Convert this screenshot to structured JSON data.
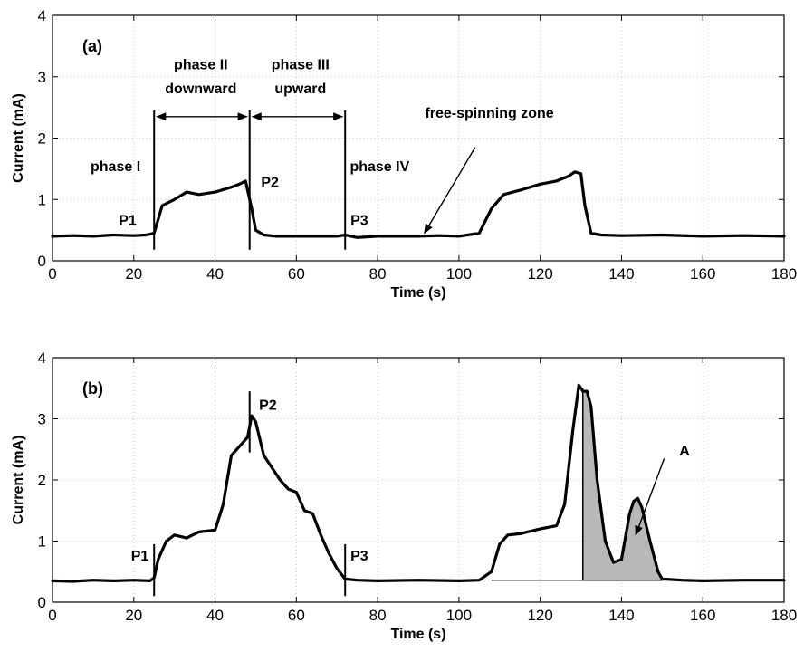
{
  "chart_data": [
    {
      "type": "line",
      "panel_label": "(a)",
      "xlabel": "Time (s)",
      "ylabel": "Current (mA)",
      "xlim": [
        0,
        180
      ],
      "ylim": [
        0,
        4
      ],
      "x_ticks": [
        0,
        20,
        40,
        60,
        80,
        100,
        120,
        140,
        160,
        180
      ],
      "y_ticks": [
        0,
        1,
        2,
        3,
        4
      ],
      "grid": true,
      "series": [
        {
          "x": [
            0,
            5,
            10,
            15,
            20,
            23,
            25,
            27,
            30,
            33,
            36,
            40,
            44,
            46,
            47.5,
            49,
            50,
            52,
            55,
            60,
            65,
            70,
            72,
            75,
            80,
            85,
            90,
            95,
            100,
            105,
            108,
            111,
            115,
            120,
            124,
            127,
            128.5,
            130,
            131,
            132.5,
            135,
            140,
            150,
            160,
            170,
            180
          ],
          "y": [
            0.4,
            0.41,
            0.4,
            0.42,
            0.41,
            0.42,
            0.45,
            0.9,
            1.0,
            1.12,
            1.08,
            1.12,
            1.2,
            1.25,
            1.3,
            0.85,
            0.5,
            0.42,
            0.4,
            0.4,
            0.4,
            0.4,
            0.42,
            0.38,
            0.4,
            0.4,
            0.4,
            0.41,
            0.4,
            0.45,
            0.85,
            1.08,
            1.15,
            1.25,
            1.3,
            1.38,
            1.45,
            1.42,
            0.9,
            0.45,
            0.42,
            0.41,
            0.42,
            0.4,
            0.41,
            0.4
          ]
        }
      ],
      "markers": [
        25,
        48.5,
        72
      ],
      "annotations": {
        "p1": "P1",
        "p2": "P2",
        "p3": "P3",
        "phase1": "phase I",
        "phase2_line1": "phase II",
        "phase2_line2": "downward",
        "phase3_line1": "phase III",
        "phase3_line2": "upward",
        "phase4": "phase IV",
        "free_spin": "free-spinning zone"
      }
    },
    {
      "type": "line",
      "panel_label": "(b)",
      "xlabel": "Time (s)",
      "ylabel": "Current (mA)",
      "xlim": [
        0,
        180
      ],
      "ylim": [
        0,
        4
      ],
      "x_ticks": [
        0,
        20,
        40,
        60,
        80,
        100,
        120,
        140,
        160,
        180
      ],
      "y_ticks": [
        0,
        1,
        2,
        3,
        4
      ],
      "grid": true,
      "series": [
        {
          "x": [
            0,
            5,
            10,
            15,
            20,
            24,
            25,
            26,
            28,
            30,
            33,
            36,
            40,
            42,
            44,
            46,
            48,
            49,
            50,
            52,
            54,
            56,
            58,
            60,
            62,
            64,
            66,
            68,
            70,
            72,
            75,
            80,
            90,
            100,
            105,
            108,
            110,
            112,
            115,
            120,
            124,
            126,
            128,
            129.5,
            130.5,
            131.5,
            132.5,
            134,
            136,
            138,
            140,
            142,
            143,
            144,
            145,
            147,
            149,
            150,
            155,
            160,
            170,
            180
          ],
          "y": [
            0.35,
            0.34,
            0.36,
            0.35,
            0.36,
            0.35,
            0.4,
            0.7,
            1.0,
            1.1,
            1.05,
            1.15,
            1.18,
            1.6,
            2.4,
            2.55,
            2.7,
            3.05,
            2.95,
            2.4,
            2.2,
            2.0,
            1.85,
            1.8,
            1.5,
            1.45,
            1.1,
            0.8,
            0.55,
            0.38,
            0.36,
            0.35,
            0.36,
            0.35,
            0.36,
            0.5,
            0.95,
            1.1,
            1.12,
            1.2,
            1.25,
            1.6,
            2.8,
            3.55,
            3.45,
            3.45,
            3.2,
            2.0,
            1.0,
            0.65,
            0.7,
            1.45,
            1.65,
            1.7,
            1.55,
            1.0,
            0.5,
            0.38,
            0.36,
            0.35,
            0.36,
            0.36
          ]
        }
      ],
      "markers": [
        25,
        48.5,
        72,
        130.5
      ],
      "shaded_area": {
        "from": 130.5,
        "to": 150,
        "baseline": 0.36
      },
      "baseline_segment": {
        "from": 108,
        "to": 150,
        "y": 0.36
      },
      "annotations": {
        "p1": "P1",
        "p2": "P2",
        "p3": "P3",
        "a": "A"
      }
    }
  ]
}
